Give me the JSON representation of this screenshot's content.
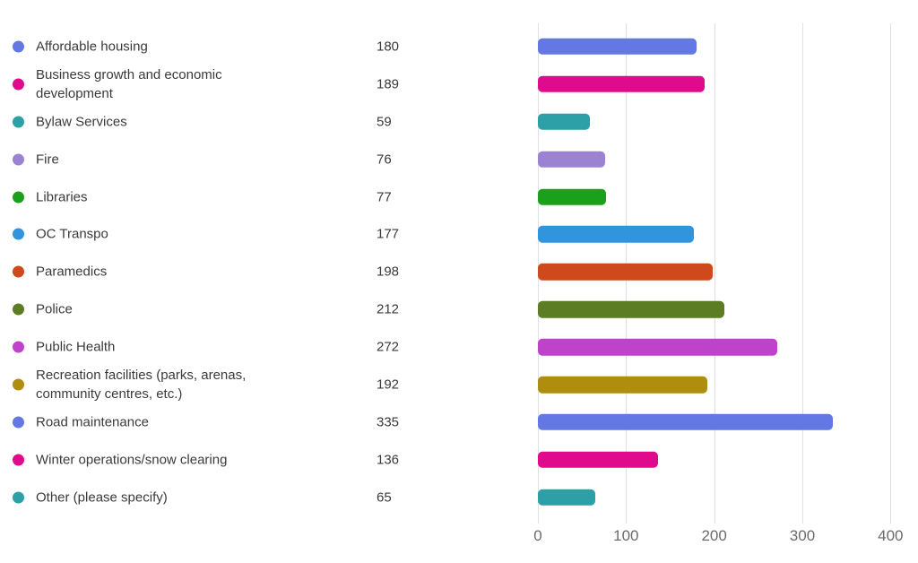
{
  "chart_data": {
    "type": "bar",
    "orientation": "horizontal",
    "title": "",
    "xlabel": "",
    "ylabel": "",
    "xlim": [
      0,
      400
    ],
    "x_ticks": [
      0,
      100,
      200,
      300,
      400
    ],
    "grid": true,
    "legend_position": "left",
    "value_labels_position": "left-of-plot",
    "categories": [
      "Affordable housing",
      "Business growth and economic development",
      "Bylaw Services",
      "Fire",
      "Libraries",
      "OC Transpo",
      "Paramedics",
      "Police",
      "Public Health",
      "Recreation facilities (parks, arenas, community centres, etc.)",
      "Road maintenance",
      "Winter operations/snow clearing",
      "Other (please specify)"
    ],
    "values": [
      180,
      189,
      59,
      76,
      77,
      177,
      198,
      212,
      272,
      192,
      335,
      136,
      65
    ],
    "colors": [
      "#6377E5",
      "#E00B8C",
      "#2CA0A6",
      "#9B82D3",
      "#1BA01B",
      "#3095DC",
      "#CE4A1D",
      "#5D7D25",
      "#BE43CA",
      "#AF8D0E",
      "#6377E5",
      "#E00B8C",
      "#2CA0A6"
    ]
  },
  "styles": {
    "gridline_color": "#e0e0e0",
    "axis_label_color": "#6b6b6b",
    "text_color": "#3b3a39",
    "background": "#ffffff"
  }
}
